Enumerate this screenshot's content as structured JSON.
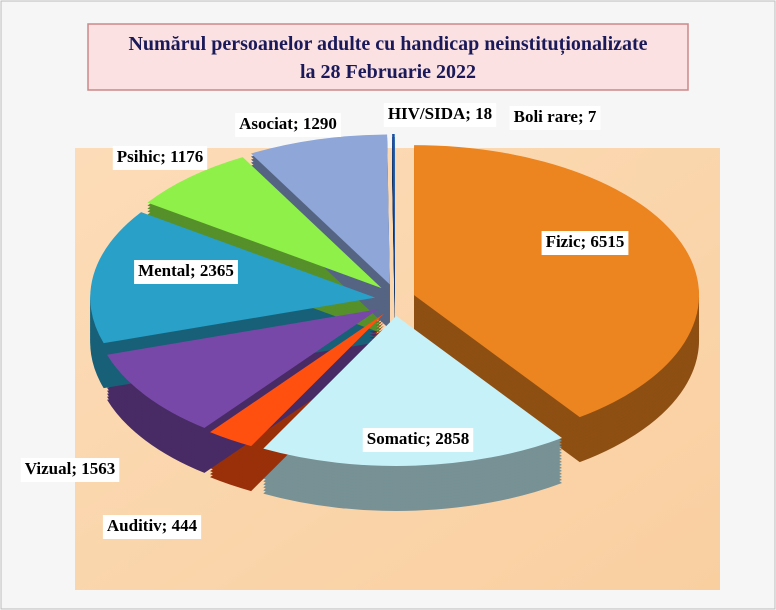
{
  "chart_data": {
    "type": "pie3d",
    "title": [
      "Numărul persoanelor adulte cu handicap neinstituționalizate",
      "la  28  Februarie 2022"
    ],
    "categories": [
      "Fizic",
      "Somatic",
      "Auditiv",
      "Vizual",
      "Mental",
      "Psihic",
      "Asociat",
      "HIV/SIDA",
      "Boli rare"
    ],
    "values": [
      6515,
      2858,
      444,
      1563,
      2365,
      1176,
      1290,
      18,
      7
    ],
    "value_labels": [
      "Fizic; 6515",
      "Somatic; 2858",
      "Auditiv; 444",
      "Vizual; 1563",
      "Mental; 2365",
      "Psihic; 1176",
      "Asociat; 1290",
      "HIV/SIDA; 18",
      "Boli rare; 7"
    ],
    "colors": [
      "#ec8420",
      "#c6f1f8",
      "#ff5010",
      "#7848a8",
      "#28a0c8",
      "#8ef048",
      "#8ea6d8",
      "#2050a0",
      "#3070c0"
    ]
  }
}
